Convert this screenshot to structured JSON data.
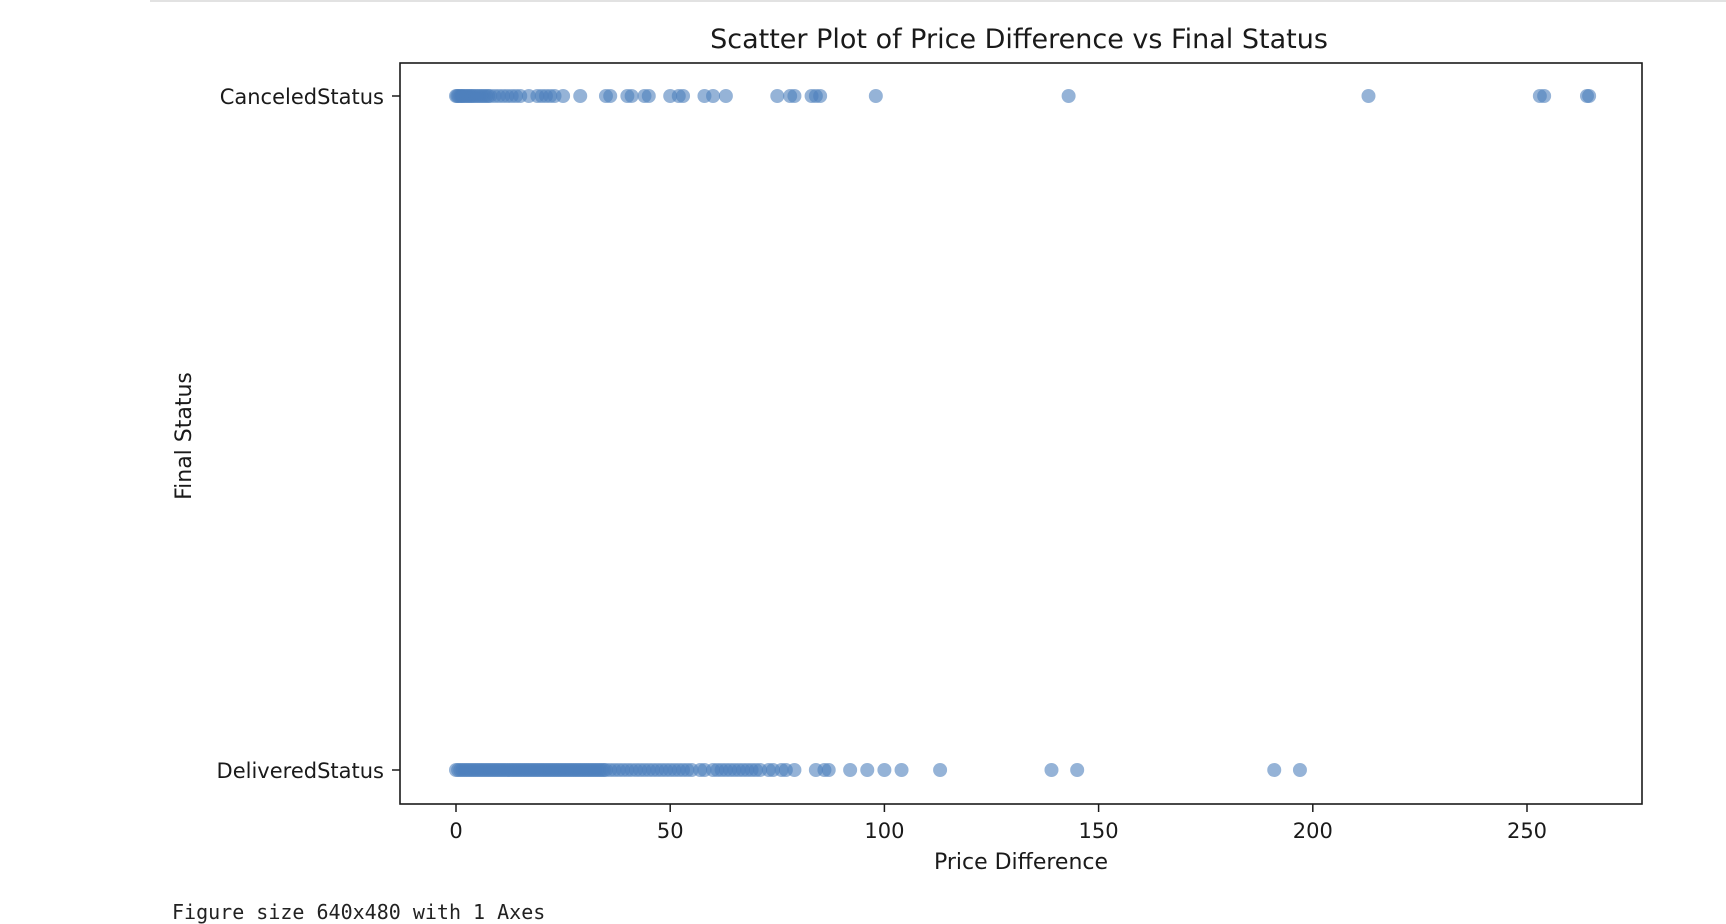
{
  "output": {
    "text": "Figure size 640x480 with 1 Axes"
  },
  "chart_data": {
    "type": "scatter",
    "title": "Scatter Plot of Price Difference vs Final Status",
    "xlabel": "Price Difference",
    "ylabel": "Final Status",
    "xlim": [
      -13,
      278
    ],
    "xticks": [
      0,
      50,
      100,
      150,
      200,
      250
    ],
    "categories": [
      "DeliveredStatus",
      "CanceledStatus"
    ],
    "point_color": "#4f81bd",
    "point_alpha": 0.6,
    "grid": false,
    "legend": "none",
    "series": [
      {
        "category": "CanceledStatus",
        "x": [
          0,
          0.3,
          0.6,
          1,
          1.3,
          1.6,
          2,
          2.4,
          2.8,
          3.2,
          3.6,
          4,
          4.5,
          5,
          5.5,
          6,
          6.5,
          7,
          7.5,
          8,
          9,
          10,
          11,
          12,
          13,
          14,
          15,
          17,
          19,
          20,
          21,
          22,
          23,
          25,
          29,
          35,
          36,
          40,
          41,
          44,
          45,
          50,
          52,
          53,
          58,
          60,
          63,
          75,
          78,
          79,
          83,
          84,
          85,
          98,
          143,
          213,
          253,
          254,
          264,
          264.5
        ]
      },
      {
        "category": "DeliveredStatus",
        "x": [
          0,
          0.5,
          1,
          1.5,
          2,
          2.5,
          3,
          3.5,
          4,
          4.5,
          5,
          5.5,
          6,
          6.5,
          7,
          7.5,
          8,
          8.5,
          9,
          9.5,
          10,
          10.5,
          11,
          11.5,
          12,
          12.5,
          13,
          13.5,
          14,
          14.5,
          15,
          15.5,
          16,
          16.5,
          17,
          17.5,
          18,
          18.5,
          19,
          19.5,
          20,
          20.5,
          21,
          21.5,
          22,
          22.5,
          23,
          23.5,
          24,
          24.5,
          25,
          25.5,
          26,
          26.5,
          27,
          27.5,
          28,
          28.5,
          29,
          29.5,
          30,
          30.5,
          31,
          31.5,
          32,
          32.5,
          33,
          33.5,
          34,
          34.5,
          35,
          36,
          37,
          38,
          39,
          40,
          41,
          42,
          43,
          44,
          45,
          46,
          47,
          48,
          49,
          50,
          51,
          52,
          53,
          54,
          55,
          57,
          58,
          60,
          61,
          62,
          63,
          64,
          65,
          66,
          67,
          68,
          69,
          70,
          71,
          73,
          74,
          76,
          77,
          79,
          84,
          86,
          87,
          92,
          96,
          100,
          104,
          113,
          139,
          145,
          191,
          197
        ]
      }
    ]
  }
}
